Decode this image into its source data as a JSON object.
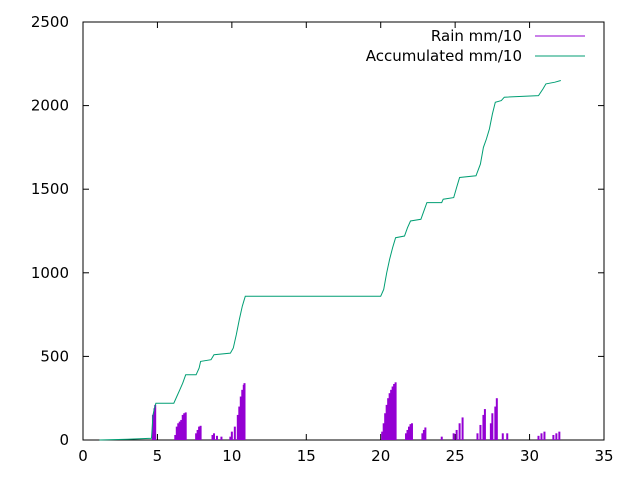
{
  "chart_data": {
    "type": "line",
    "title": "",
    "xlabel": "",
    "ylabel": "",
    "xlim": [
      0,
      35
    ],
    "ylim": [
      0,
      2500
    ],
    "xticks": [
      0,
      5,
      10,
      15,
      20,
      25,
      30,
      35
    ],
    "yticks": [
      0,
      500,
      1000,
      1500,
      2000,
      2500
    ],
    "grid": false,
    "legend_position": "top-right",
    "series": [
      {
        "name": "Rain mm/10",
        "style": "impulses",
        "color": "#9400d3",
        "points": [
          [
            4.7,
            150
          ],
          [
            4.8,
            190
          ],
          [
            4.85,
            210
          ],
          [
            6.2,
            30
          ],
          [
            6.3,
            80
          ],
          [
            6.4,
            100
          ],
          [
            6.5,
            110
          ],
          [
            6.6,
            120
          ],
          [
            6.7,
            150
          ],
          [
            6.8,
            160
          ],
          [
            6.9,
            165
          ],
          [
            7.6,
            40
          ],
          [
            7.7,
            60
          ],
          [
            7.8,
            80
          ],
          [
            7.9,
            85
          ],
          [
            8.7,
            30
          ],
          [
            8.8,
            40
          ],
          [
            9.0,
            25
          ],
          [
            9.3,
            20
          ],
          [
            9.9,
            20
          ],
          [
            10.0,
            50
          ],
          [
            10.2,
            80
          ],
          [
            10.4,
            150
          ],
          [
            10.5,
            200
          ],
          [
            10.6,
            260
          ],
          [
            10.7,
            300
          ],
          [
            10.8,
            330
          ],
          [
            10.85,
            340
          ],
          [
            20.1,
            50
          ],
          [
            20.2,
            100
          ],
          [
            20.3,
            160
          ],
          [
            20.4,
            210
          ],
          [
            20.5,
            250
          ],
          [
            20.6,
            280
          ],
          [
            20.7,
            300
          ],
          [
            20.8,
            320
          ],
          [
            20.9,
            335
          ],
          [
            21.0,
            345
          ],
          [
            21.7,
            40
          ],
          [
            21.8,
            60
          ],
          [
            21.9,
            80
          ],
          [
            22.0,
            95
          ],
          [
            22.1,
            100
          ],
          [
            22.8,
            40
          ],
          [
            22.9,
            60
          ],
          [
            23.0,
            75
          ],
          [
            24.1,
            20
          ],
          [
            24.9,
            40
          ],
          [
            25.1,
            60
          ],
          [
            25.3,
            100
          ],
          [
            25.5,
            135
          ],
          [
            26.5,
            40
          ],
          [
            26.7,
            90
          ],
          [
            26.9,
            150
          ],
          [
            27.0,
            185
          ],
          [
            27.4,
            100
          ],
          [
            27.5,
            160
          ],
          [
            27.7,
            200
          ],
          [
            27.8,
            250
          ],
          [
            28.2,
            40
          ],
          [
            28.5,
            40
          ],
          [
            30.6,
            25
          ],
          [
            30.8,
            40
          ],
          [
            31.0,
            50
          ],
          [
            31.6,
            30
          ],
          [
            31.8,
            40
          ],
          [
            32.0,
            50
          ]
        ]
      },
      {
        "name": "Accumulated mm/10",
        "style": "lines",
        "color": "#009e73",
        "points": [
          [
            1.1,
            0
          ],
          [
            3.0,
            5
          ],
          [
            4.6,
            10
          ],
          [
            4.7,
            150
          ],
          [
            4.8,
            190
          ],
          [
            4.9,
            220
          ],
          [
            6.1,
            220
          ],
          [
            6.3,
            260
          ],
          [
            6.5,
            300
          ],
          [
            6.7,
            340
          ],
          [
            6.9,
            390
          ],
          [
            7.6,
            390
          ],
          [
            7.8,
            430
          ],
          [
            7.9,
            470
          ],
          [
            8.6,
            480
          ],
          [
            8.8,
            510
          ],
          [
            9.9,
            520
          ],
          [
            10.1,
            550
          ],
          [
            10.3,
            630
          ],
          [
            10.5,
            720
          ],
          [
            10.7,
            800
          ],
          [
            10.8,
            830
          ],
          [
            10.9,
            860
          ],
          [
            20.0,
            860
          ],
          [
            20.2,
            900
          ],
          [
            20.4,
            1000
          ],
          [
            20.6,
            1080
          ],
          [
            20.8,
            1150
          ],
          [
            21.0,
            1210
          ],
          [
            21.6,
            1220
          ],
          [
            21.8,
            1270
          ],
          [
            22.0,
            1310
          ],
          [
            22.7,
            1320
          ],
          [
            22.9,
            1370
          ],
          [
            23.1,
            1420
          ],
          [
            24.1,
            1420
          ],
          [
            24.2,
            1440
          ],
          [
            24.9,
            1450
          ],
          [
            25.1,
            1510
          ],
          [
            25.3,
            1570
          ],
          [
            26.4,
            1580
          ],
          [
            26.7,
            1650
          ],
          [
            26.9,
            1750
          ],
          [
            27.1,
            1800
          ],
          [
            27.3,
            1860
          ],
          [
            27.5,
            1950
          ],
          [
            27.7,
            2020
          ],
          [
            28.1,
            2030
          ],
          [
            28.3,
            2050
          ],
          [
            30.6,
            2060
          ],
          [
            30.9,
            2100
          ],
          [
            31.1,
            2130
          ],
          [
            31.7,
            2140
          ],
          [
            32.1,
            2150
          ]
        ]
      }
    ]
  }
}
